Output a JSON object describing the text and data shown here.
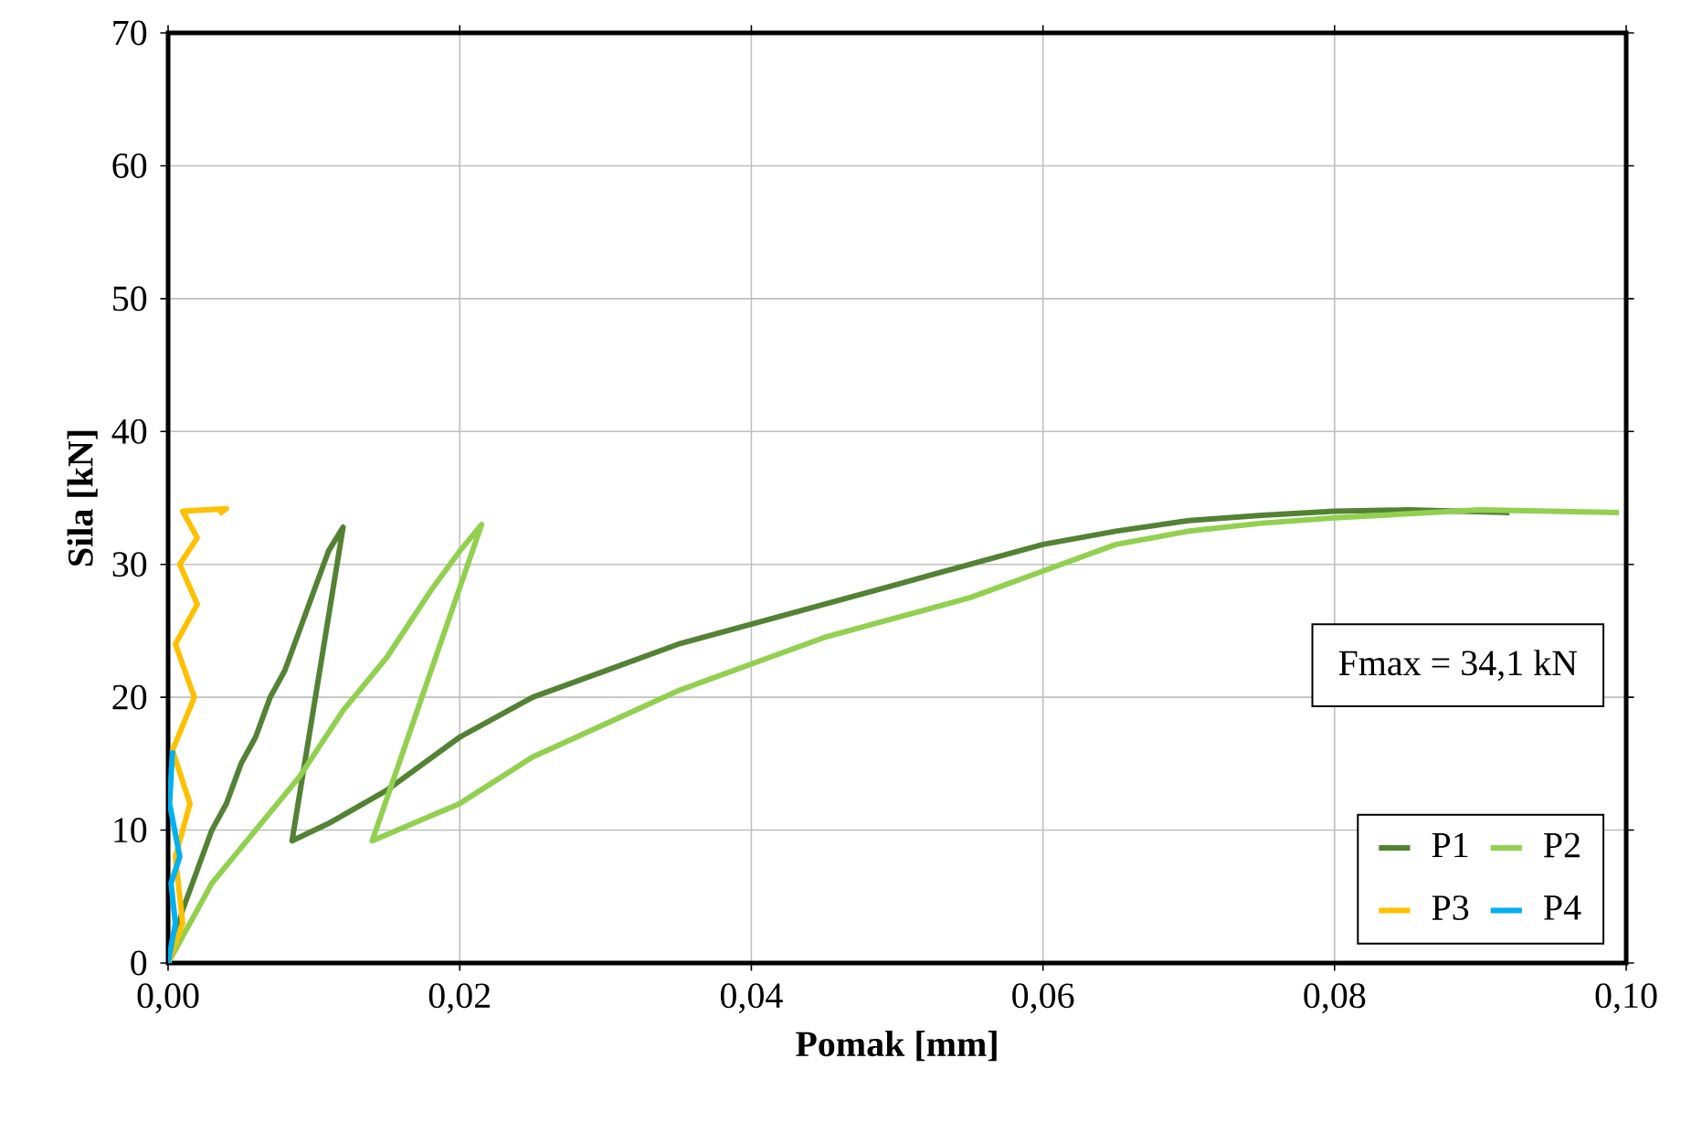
{
  "chart_data": {
    "type": "line",
    "xlabel": "Pomak [mm]",
    "ylabel": "Sila [kN]",
    "annotations": [
      "Fmax = 34,1 kN"
    ],
    "xlim": [
      0,
      0.1
    ],
    "ylim": [
      0,
      70
    ],
    "xticks": [
      {
        "value": 0,
        "label": "0,00"
      },
      {
        "value": 0.02,
        "label": "0,02"
      },
      {
        "value": 0.04,
        "label": "0,04"
      },
      {
        "value": 0.06,
        "label": "0,06"
      },
      {
        "value": 0.08,
        "label": "0,08"
      },
      {
        "value": 0.1,
        "label": "0,10"
      }
    ],
    "yticks": [
      0,
      10,
      20,
      30,
      40,
      50,
      60,
      70
    ],
    "grid": true,
    "legend": "bottom right",
    "marker": "none",
    "line_style": "solid",
    "series": [
      {
        "name": "P1",
        "color": "#548235",
        "x": [
          0,
          0.001,
          0.002,
          0.003,
          0.004,
          0.005,
          0.006,
          0.007,
          0.008,
          0.009,
          0.01,
          0.011,
          0.012,
          0.0085,
          0.011,
          0.015,
          0.02,
          0.025,
          0.03,
          0.035,
          0.04,
          0.045,
          0.05,
          0.055,
          0.06,
          0.065,
          0.07,
          0.075,
          0.08,
          0.085,
          0.092
        ],
        "values": [
          0,
          4,
          7,
          10,
          12,
          15,
          17,
          20,
          22,
          25,
          28,
          31,
          32.8,
          9.2,
          10.5,
          13,
          17,
          20,
          22,
          24,
          25.5,
          27,
          28.5,
          30,
          31.5,
          32.5,
          33.3,
          33.7,
          34,
          34.1,
          33.9
        ]
      },
      {
        "name": "P2",
        "color": "#92d050",
        "x": [
          0,
          0.002,
          0.003,
          0.006,
          0.009,
          0.012,
          0.015,
          0.018,
          0.02,
          0.0215,
          0.014,
          0.02,
          0.025,
          0.03,
          0.035,
          0.04,
          0.045,
          0.05,
          0.055,
          0.06,
          0.065,
          0.07,
          0.075,
          0.08,
          0.09,
          0.0995
        ],
        "values": [
          0,
          4,
          6,
          10,
          14,
          19,
          23,
          28,
          31,
          33,
          9.2,
          12,
          15.5,
          18,
          20.5,
          22.5,
          24.5,
          26,
          27.5,
          29.5,
          31.5,
          32.5,
          33.1,
          33.5,
          34.1,
          33.9
        ]
      },
      {
        "name": "P3",
        "color": "#ffc000",
        "x": [
          0,
          0.001,
          0.0005,
          0.0015,
          0.0003,
          0.0018,
          0.0005,
          0.002,
          0.0008,
          0.002,
          0.001,
          0.004,
          0.0035
        ],
        "values": [
          0,
          3,
          8,
          12,
          16,
          20,
          24,
          27,
          30,
          32,
          34,
          34.2,
          33.8
        ]
      },
      {
        "name": "P4",
        "color": "#00b0f0",
        "x": [
          0,
          0.0005,
          0.0002,
          0.0008,
          0.0001,
          0.0003
        ],
        "values": [
          0,
          3,
          6,
          8,
          12,
          16
        ]
      }
    ]
  }
}
